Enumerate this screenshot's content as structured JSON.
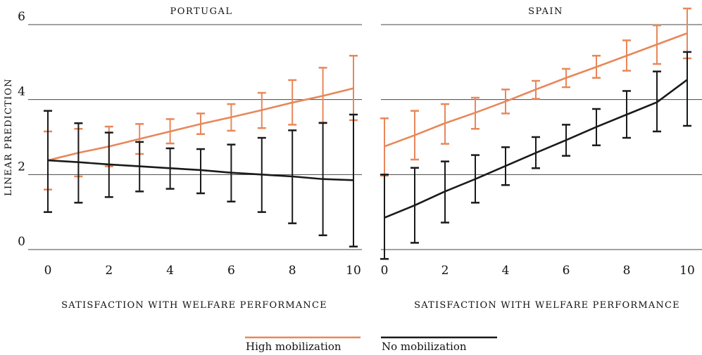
{
  "chart_data": [
    {
      "type": "line",
      "title": "PORTUGAL",
      "xlabel": "SATISFACTION WITH WELFARE PERFORMANCE",
      "ylabel": "LINEAR PREDICTION",
      "xlim": [
        0,
        10
      ],
      "ylim": [
        0,
        6
      ],
      "x": [
        0,
        1,
        2,
        3,
        4,
        5,
        6,
        7,
        8,
        9,
        10
      ],
      "x_ticks": [
        "0",
        "2",
        "4",
        "6",
        "8",
        "10"
      ],
      "y_ticks": [
        "0",
        "2",
        "4",
        "6"
      ],
      "series": [
        {
          "name": "High mobilization",
          "color": "#E8875A",
          "values": [
            2.38,
            2.58,
            2.75,
            2.95,
            3.15,
            3.35,
            3.53,
            3.72,
            3.92,
            4.1,
            4.3
          ],
          "lower": [
            1.6,
            1.95,
            2.22,
            2.55,
            2.83,
            3.08,
            3.17,
            3.24,
            3.33,
            3.37,
            3.45
          ],
          "upper": [
            3.15,
            3.22,
            3.28,
            3.35,
            3.48,
            3.63,
            3.88,
            4.18,
            4.52,
            4.85,
            5.17
          ]
        },
        {
          "name": "No mobilization",
          "color": "#1a1a1a",
          "values": [
            2.38,
            2.33,
            2.27,
            2.22,
            2.17,
            2.12,
            2.05,
            2.0,
            1.95,
            1.88,
            1.85
          ],
          "lower": [
            1.0,
            1.25,
            1.4,
            1.55,
            1.62,
            1.5,
            1.28,
            1.0,
            0.7,
            0.38,
            0.08
          ],
          "upper": [
            3.7,
            3.37,
            3.12,
            2.87,
            2.7,
            2.68,
            2.8,
            2.98,
            3.18,
            3.38,
            3.6
          ]
        }
      ]
    },
    {
      "type": "line",
      "title": "SPAIN",
      "xlabel": "SATISFACTION WITH WELFARE PERFORMANCE",
      "xlim": [
        0,
        10
      ],
      "ylim": [
        0,
        6
      ],
      "x": [
        0,
        1,
        2,
        3,
        4,
        5,
        6,
        7,
        8,
        9,
        10
      ],
      "x_ticks": [
        "0",
        "2",
        "4",
        "6",
        "8",
        "10"
      ],
      "series": [
        {
          "name": "High mobilization",
          "color": "#E8875A",
          "values": [
            2.75,
            3.05,
            3.37,
            3.65,
            3.95,
            4.27,
            4.58,
            4.87,
            5.17,
            5.47,
            5.77
          ],
          "lower": [
            1.97,
            2.4,
            2.82,
            3.22,
            3.63,
            4.02,
            4.33,
            4.58,
            4.77,
            4.95,
            5.1
          ],
          "upper": [
            3.5,
            3.7,
            3.88,
            4.05,
            4.27,
            4.5,
            4.82,
            5.17,
            5.58,
            5.98,
            6.43
          ]
        },
        {
          "name": "No mobilization",
          "color": "#1a1a1a",
          "values": [
            0.85,
            1.18,
            1.55,
            1.88,
            2.23,
            2.58,
            2.92,
            3.27,
            3.6,
            3.93,
            4.53
          ],
          "lower": [
            -0.25,
            0.18,
            0.72,
            1.25,
            1.72,
            2.17,
            2.5,
            2.78,
            2.98,
            3.15,
            3.3
          ],
          "upper": [
            2.0,
            2.18,
            2.35,
            2.52,
            2.73,
            3.0,
            3.33,
            3.75,
            4.23,
            4.75,
            5.27
          ]
        }
      ]
    }
  ],
  "legend": {
    "placement": "bottom-center",
    "items": [
      {
        "label": "High mobilization",
        "color": "#E8875A"
      },
      {
        "label": "No mobilization",
        "color": "#1a1a1a"
      }
    ]
  }
}
